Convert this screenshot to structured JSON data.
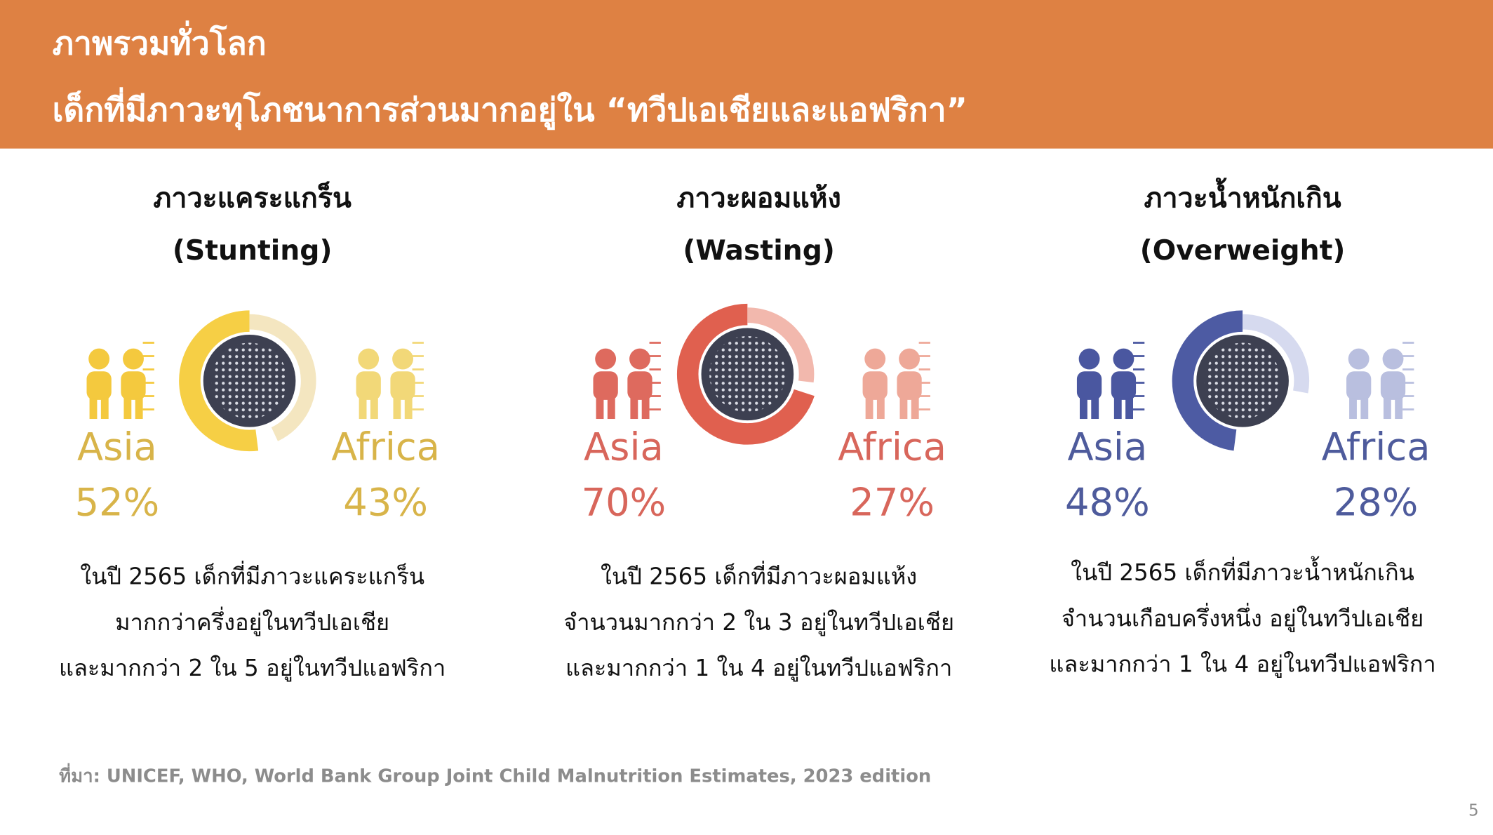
{
  "header": {
    "title_lines": [
      "ภาพรวมทั่วโลก",
      "เด็กที่มีภาวะทุโภชนาการส่วนมากอยู่ใน “ทวีปเอเชียและแอฟริกา”"
    ]
  },
  "panels": [
    {
      "title": "ภาวะแคระแกร็น",
      "subtitle": "(Stunting)",
      "asia": {
        "label": "Asia",
        "share": {
          "value": 52,
          "label": "52%"
        }
      },
      "africa": {
        "label": "Africa",
        "share": {
          "value": 43,
          "label": "43%"
        }
      },
      "description": [
        "ในปี 2565 เด็กที่มีภาวะแคระแกร็น",
        "มากกว่าครึ่งอยู่ในทวีปเอเชีย",
        "และมากกว่า 2 ใน 5 อยู่ในทวีปแอฟริกา"
      ]
    },
    {
      "title": "ภาวะผอมแห้ง",
      "subtitle": "(Wasting)",
      "asia": {
        "label": "Asia",
        "share": {
          "value": 70,
          "label": "70%"
        }
      },
      "africa": {
        "label": "Africa",
        "share": {
          "value": 27,
          "label": "27%"
        }
      },
      "description": [
        "ในปี 2565 เด็กที่มีภาวะผอมแห้ง",
        "จำนวนมากกว่า 2 ใน 3 อยู่ในทวีปเอเชีย",
        "และมากกว่า 1 ใน 4 อยู่ในทวีปแอฟริกา"
      ]
    },
    {
      "title": "ภาวะน้ำหนักเกิน",
      "subtitle": "(Overweight)",
      "asia": {
        "label": "Asia",
        "share": {
          "value": 48,
          "label": "48%"
        }
      },
      "africa": {
        "label": "Africa",
        "share": {
          "value": 28,
          "label": "28%"
        }
      },
      "description": [
        "ในปี 2565 เด็กที่มีภาวะน้ำหนักเกิน",
        "จำนวนเกือบครึ่งหนึ่ง อยู่ในทวีปเอเชีย",
        "และมากกว่า 1 ใน 4 อยู่ในทวีปแอฟริกา"
      ]
    }
  ],
  "source": "ที่มา: UNICEF, WHO, World Bank Group Joint Child Malnutrition Estimates, 2023 edition",
  "page_number": "5"
}
